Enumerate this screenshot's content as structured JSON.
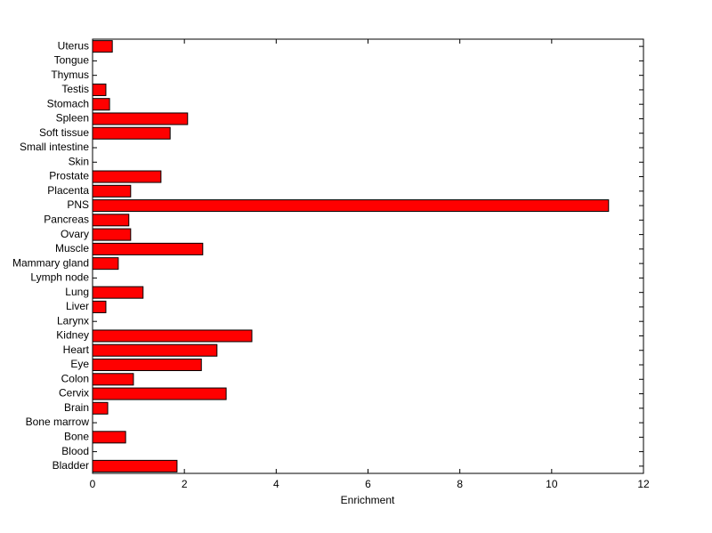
{
  "chart_data": {
    "type": "barh",
    "x_label": "Enrichment",
    "categories": [
      "Bladder",
      "Blood",
      "Bone",
      "Bone marrow",
      "Brain",
      "Cervix",
      "Colon",
      "Eye",
      "Heart",
      "Kidney",
      "Larynx",
      "Liver",
      "Lung",
      "Lymph node",
      "Mammary gland",
      "Muscle",
      "Ovary",
      "Pancreas",
      "PNS",
      "Placenta",
      "Prostate",
      "Skin",
      "Small intestine",
      "Soft tissue",
      "Spleen",
      "Stomach",
      "Testis",
      "Thymus",
      "Tongue",
      "Uterus"
    ],
    "values": [
      1.84,
      0,
      0.72,
      0,
      0.33,
      2.91,
      0.89,
      2.37,
      2.71,
      3.47,
      0,
      0.29,
      1.1,
      0,
      0.56,
      2.4,
      0.83,
      0.79,
      11.24,
      0.83,
      1.49,
      0,
      0,
      1.69,
      2.07,
      0.37,
      0.29,
      0,
      0,
      0.43
    ],
    "color": "#ff0000",
    "xlim": [
      0,
      12
    ],
    "xticks": [
      0,
      2,
      4,
      6,
      8,
      10,
      12
    ]
  }
}
